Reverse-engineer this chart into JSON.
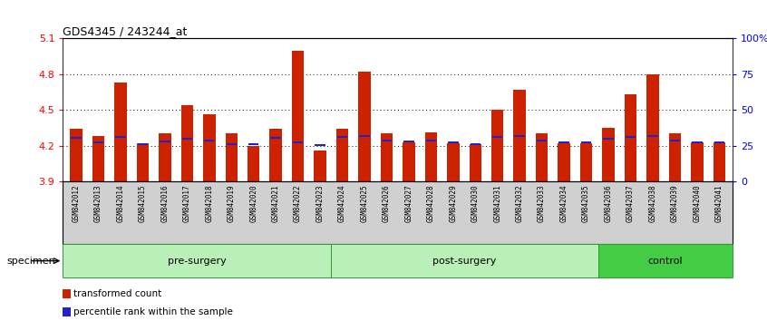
{
  "title": "GDS4345 / 243244_at",
  "specimens": [
    "GSM842012",
    "GSM842013",
    "GSM842014",
    "GSM842015",
    "GSM842016",
    "GSM842017",
    "GSM842018",
    "GSM842019",
    "GSM842020",
    "GSM842021",
    "GSM842022",
    "GSM842023",
    "GSM842024",
    "GSM842025",
    "GSM842026",
    "GSM842027",
    "GSM842028",
    "GSM842029",
    "GSM842030",
    "GSM842031",
    "GSM842032",
    "GSM842033",
    "GSM842034",
    "GSM842035",
    "GSM842036",
    "GSM842037",
    "GSM842038",
    "GSM842039",
    "GSM842040",
    "GSM842041"
  ],
  "red_values": [
    4.34,
    4.28,
    4.73,
    4.22,
    4.3,
    4.54,
    4.46,
    4.3,
    4.2,
    4.34,
    5.0,
    4.16,
    4.34,
    4.82,
    4.3,
    4.23,
    4.31,
    4.22,
    4.21,
    4.5,
    4.67,
    4.3,
    4.22,
    4.22,
    4.35,
    4.63,
    4.8,
    4.3,
    4.23,
    4.23
  ],
  "blue_values": [
    4.265,
    4.225,
    4.27,
    4.215,
    4.235,
    4.26,
    4.245,
    4.215,
    4.215,
    4.265,
    4.225,
    4.205,
    4.27,
    4.28,
    4.245,
    4.235,
    4.245,
    4.225,
    4.215,
    4.27,
    4.28,
    4.245,
    4.225,
    4.225,
    4.255,
    4.27,
    4.28,
    4.245,
    4.225,
    4.225
  ],
  "ylim_left": [
    3.9,
    5.1
  ],
  "yticks_left": [
    3.9,
    4.2,
    4.5,
    4.8,
    5.1
  ],
  "yticks_right": [
    0,
    25,
    50,
    75,
    100
  ],
  "ytick_labels_right": [
    "0",
    "25",
    "50",
    "75",
    "100%"
  ],
  "groups": [
    {
      "label": "pre-surgery",
      "start": 0,
      "end": 12
    },
    {
      "label": "post-surgery",
      "start": 12,
      "end": 24
    },
    {
      "label": "control",
      "start": 24,
      "end": 30
    }
  ],
  "group_colors": [
    "#b8f0b8",
    "#b8f0b8",
    "#44cc44"
  ],
  "bar_color_red": "#cc2200",
  "bar_color_blue": "#2222cc",
  "bar_width": 0.55,
  "base": 3.9,
  "legend_items": [
    {
      "color": "#cc2200",
      "label": "transformed count"
    },
    {
      "color": "#2222cc",
      "label": "percentile rank within the sample"
    }
  ],
  "specimen_label": "specimen",
  "grid_color": "black",
  "grid_linewidth": 0.7,
  "xtick_bg_color": "#d0d0d0",
  "spine_color": "#333333"
}
